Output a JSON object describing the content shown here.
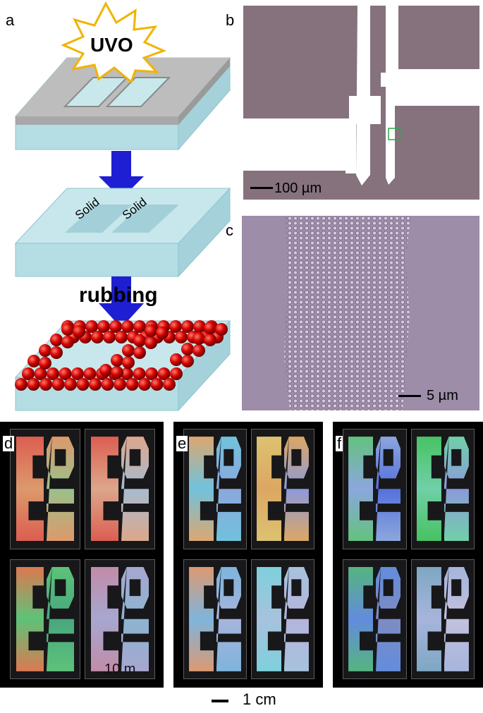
{
  "panels": {
    "a": {
      "label": "a",
      "uvo": "UVO",
      "solid1": "Solid",
      "solid2": "Solid",
      "rubbing": "rubbing"
    },
    "b": {
      "label": "b",
      "scale": "100 µm"
    },
    "c": {
      "label": "c",
      "scale": "5 µm"
    },
    "d": {
      "label": "d",
      "inset_text": "10 m"
    },
    "e": {
      "label": "e"
    },
    "f": {
      "label": "f"
    }
  },
  "bottom_scale": "1 cm",
  "colors": {
    "arrow": "#1e1ed2",
    "slab_top": "#cfeaee",
    "slab_side": "#b4dde4",
    "mask": "#bdbdbd",
    "sphere": "#d40000",
    "micro_bg": "#87737d",
    "micro_c_bg": "#9d8da8"
  }
}
